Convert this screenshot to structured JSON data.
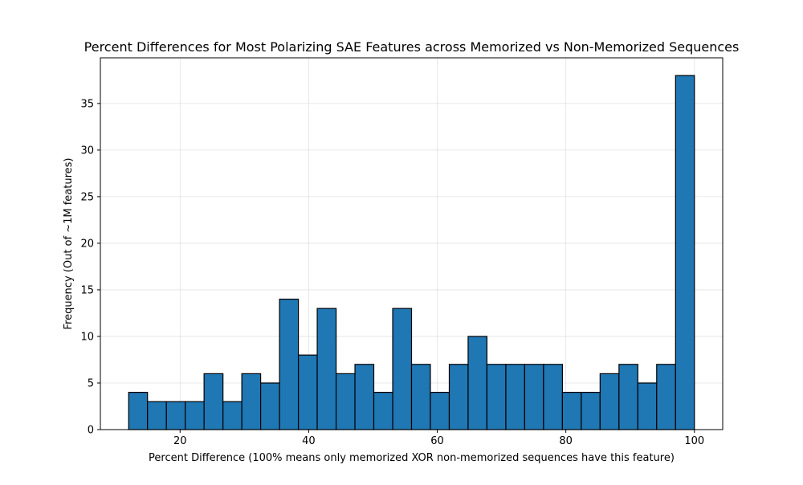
{
  "chart_data": {
    "type": "bar",
    "title": "Percent Differences for Most Polarizing SAE Features across Memorized vs Non-Memorized Sequences",
    "xlabel": "Percent Difference (100% means only memorized XOR non-memorized sequences have this feature)",
    "ylabel": "Frequency (Out of ~1M features)",
    "xlim": [
      7.6,
      104.4
    ],
    "ylim": [
      0,
      39.9
    ],
    "xticks": [
      20,
      40,
      60,
      80,
      100
    ],
    "yticks": [
      0,
      5,
      10,
      15,
      20,
      25,
      30,
      35
    ],
    "grid": true,
    "bar_color": "#1f77b4",
    "edge_color": "#000000",
    "bins": [
      {
        "start": 12.0,
        "end": 14.93,
        "count": 4
      },
      {
        "start": 14.93,
        "end": 17.87,
        "count": 3
      },
      {
        "start": 17.87,
        "end": 20.8,
        "count": 3
      },
      {
        "start": 20.8,
        "end": 23.73,
        "count": 3
      },
      {
        "start": 23.73,
        "end": 26.67,
        "count": 6
      },
      {
        "start": 26.67,
        "end": 29.6,
        "count": 3
      },
      {
        "start": 29.6,
        "end": 32.53,
        "count": 6
      },
      {
        "start": 32.53,
        "end": 35.47,
        "count": 5
      },
      {
        "start": 35.47,
        "end": 38.4,
        "count": 14
      },
      {
        "start": 38.4,
        "end": 41.33,
        "count": 8
      },
      {
        "start": 41.33,
        "end": 44.27,
        "count": 13
      },
      {
        "start": 44.27,
        "end": 47.2,
        "count": 6
      },
      {
        "start": 47.2,
        "end": 50.13,
        "count": 7
      },
      {
        "start": 50.13,
        "end": 53.07,
        "count": 4
      },
      {
        "start": 53.07,
        "end": 56.0,
        "count": 13
      },
      {
        "start": 56.0,
        "end": 58.93,
        "count": 7
      },
      {
        "start": 58.93,
        "end": 61.87,
        "count": 4
      },
      {
        "start": 61.87,
        "end": 64.8,
        "count": 7
      },
      {
        "start": 64.8,
        "end": 67.73,
        "count": 10
      },
      {
        "start": 67.73,
        "end": 70.67,
        "count": 7
      },
      {
        "start": 70.67,
        "end": 73.6,
        "count": 7
      },
      {
        "start": 73.6,
        "end": 76.53,
        "count": 7
      },
      {
        "start": 76.53,
        "end": 79.47,
        "count": 7
      },
      {
        "start": 79.47,
        "end": 82.4,
        "count": 4
      },
      {
        "start": 82.4,
        "end": 85.33,
        "count": 4
      },
      {
        "start": 85.33,
        "end": 88.27,
        "count": 6
      },
      {
        "start": 88.27,
        "end": 91.2,
        "count": 7
      },
      {
        "start": 91.2,
        "end": 94.13,
        "count": 5
      },
      {
        "start": 94.13,
        "end": 97.07,
        "count": 7
      },
      {
        "start": 97.07,
        "end": 100.0,
        "count": 38
      }
    ]
  }
}
